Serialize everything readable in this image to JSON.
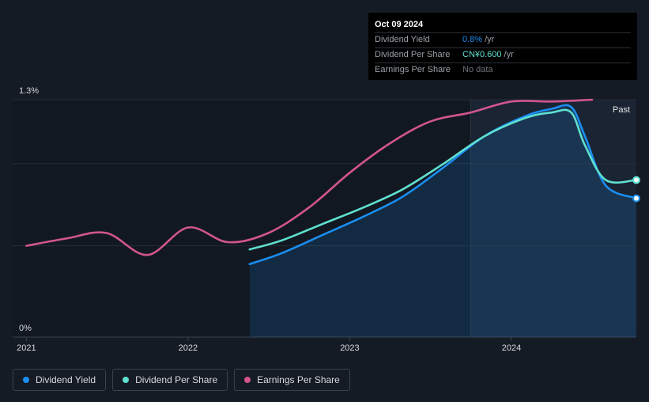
{
  "chart_data": {
    "type": "line",
    "x_range": [
      "2020-12-01",
      "2024-10-09"
    ],
    "ylim": [
      0,
      1.3
    ],
    "y_tick_labels": [
      "1.3%",
      "0%"
    ],
    "x_tick_labels": [
      "2021",
      "2022",
      "2023",
      "2024"
    ],
    "x_tick_dates": [
      "2021-01-01",
      "2022-01-01",
      "2023-01-01",
      "2024-01-01"
    ],
    "forecast_start": "2023-10-01",
    "past_label": "Past",
    "series": [
      {
        "name": "Dividend Yield",
        "color": "#1b8ef0",
        "points": [
          [
            "2022-05-20",
            0.4
          ],
          [
            "2022-08-01",
            0.46
          ],
          [
            "2022-11-01",
            0.56
          ],
          [
            "2023-02-01",
            0.66
          ],
          [
            "2023-05-01",
            0.77
          ],
          [
            "2023-08-01",
            0.93
          ],
          [
            "2023-11-01",
            1.1
          ],
          [
            "2024-02-01",
            1.21
          ],
          [
            "2024-04-01",
            1.25
          ],
          [
            "2024-05-15",
            1.26
          ],
          [
            "2024-06-15",
            1.1
          ],
          [
            "2024-08-01",
            0.83
          ],
          [
            "2024-10-09",
            0.76
          ]
        ]
      },
      {
        "name": "Dividend Per Share",
        "color": "#5fe0d0",
        "points": [
          [
            "2022-05-20",
            0.48
          ],
          [
            "2022-08-01",
            0.53
          ],
          [
            "2022-11-01",
            0.62
          ],
          [
            "2023-02-01",
            0.71
          ],
          [
            "2023-05-01",
            0.81
          ],
          [
            "2023-08-01",
            0.95
          ],
          [
            "2023-11-01",
            1.1
          ],
          [
            "2024-02-01",
            1.2
          ],
          [
            "2024-04-01",
            1.23
          ],
          [
            "2024-05-15",
            1.23
          ],
          [
            "2024-06-15",
            1.05
          ],
          [
            "2024-08-01",
            0.86
          ],
          [
            "2024-10-09",
            0.86
          ]
        ]
      },
      {
        "name": "Earnings Per Share",
        "color": "#d1558f",
        "points": [
          [
            "2021-01-01",
            0.5
          ],
          [
            "2021-04-01",
            0.54
          ],
          [
            "2021-07-01",
            0.57
          ],
          [
            "2021-10-01",
            0.45
          ],
          [
            "2022-01-01",
            0.6
          ],
          [
            "2022-04-01",
            0.52
          ],
          [
            "2022-07-01",
            0.57
          ],
          [
            "2022-10-01",
            0.71
          ],
          [
            "2023-01-01",
            0.9
          ],
          [
            "2023-04-01",
            1.06
          ],
          [
            "2023-07-01",
            1.18
          ],
          [
            "2023-10-01",
            1.23
          ],
          [
            "2024-01-01",
            1.29
          ],
          [
            "2024-04-01",
            1.29
          ],
          [
            "2024-07-01",
            1.3
          ]
        ]
      }
    ]
  },
  "tooltip": {
    "date": "Oct 09 2024",
    "rows": [
      {
        "label": "Dividend Yield",
        "value": "0.8%",
        "unit": "/yr"
      },
      {
        "label": "Dividend Per Share",
        "value": "CN¥0.600",
        "unit": "/yr"
      },
      {
        "label": "Earnings Per Share",
        "value": "No data",
        "unit": ""
      }
    ]
  },
  "legend": [
    {
      "label": "Dividend Yield",
      "color": "#1b8ef0"
    },
    {
      "label": "Dividend Per Share",
      "color": "#5fe0d0"
    },
    {
      "label": "Earnings Per Share",
      "color": "#d1558f"
    }
  ]
}
